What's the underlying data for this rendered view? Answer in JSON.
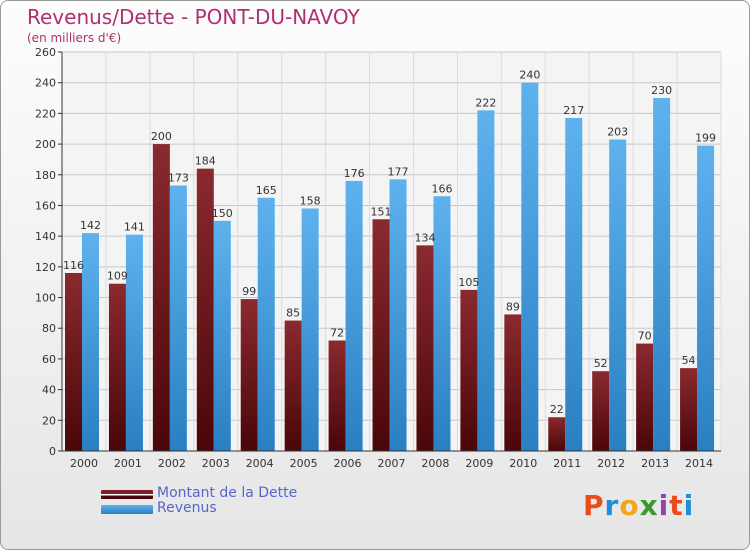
{
  "header": {
    "title": "Revenus/Dette - PONT-DU-NAVOY",
    "subtitle": "(en milliers d'€)"
  },
  "logo": {
    "text": "Proxiti",
    "letter_colors": [
      "#e84c1c",
      "#1d8fd6",
      "#f0a81a",
      "#3a9a2b",
      "#8e44ad",
      "#e84c1c",
      "#1d8fd6"
    ]
  },
  "chart_data": {
    "type": "bar",
    "title": "Revenus/Dette - PONT-DU-NAVOY",
    "subtitle": "(en milliers d'€)",
    "categories": [
      "2000",
      "2001",
      "2002",
      "2003",
      "2004",
      "2005",
      "2006",
      "2007",
      "2008",
      "2009",
      "2010",
      "2011",
      "2012",
      "2013",
      "2014"
    ],
    "series": [
      {
        "name": "Montant de la Dette",
        "color": "#7d1f24",
        "values": [
          116,
          109,
          200,
          184,
          99,
          85,
          72,
          151,
          134,
          105,
          89,
          22,
          52,
          70,
          54
        ]
      },
      {
        "name": "Revenus",
        "color": "#4aa3e6",
        "values": [
          142,
          141,
          173,
          150,
          165,
          158,
          176,
          177,
          166,
          222,
          240,
          217,
          203,
          230,
          199
        ]
      }
    ],
    "ylim": [
      0,
      260
    ],
    "yticks": [
      0,
      20,
      40,
      60,
      80,
      100,
      120,
      140,
      160,
      180,
      200,
      220,
      240,
      260
    ],
    "grid": true,
    "legend_position": "bottom-left"
  }
}
